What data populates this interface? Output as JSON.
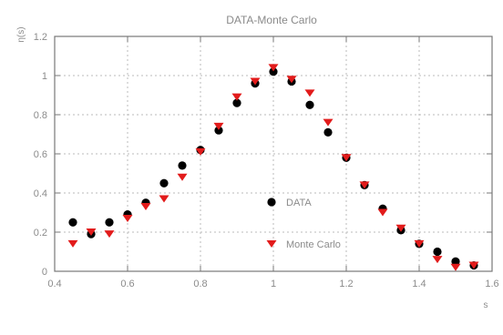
{
  "chart_data": {
    "type": "scatter",
    "title": "DATA-Monte Carlo",
    "xlabel": "s",
    "ylabel": "η(s)",
    "xlim": [
      0.4,
      1.6
    ],
    "ylim": [
      0,
      1.2
    ],
    "x_ticks": [
      "0.4",
      "0.6",
      "0.8",
      "1",
      "1.2",
      "1.4",
      "1.6"
    ],
    "y_ticks": [
      "0",
      "0.2",
      "0.4",
      "0.6",
      "0.8",
      "1",
      "1.2"
    ],
    "grid": true,
    "legend_position": "center-right",
    "series": [
      {
        "name": "DATA",
        "marker": "circle",
        "color": "#000000",
        "points": [
          [
            0.45,
            0.25
          ],
          [
            0.5,
            0.19
          ],
          [
            0.55,
            0.25
          ],
          [
            0.6,
            0.29
          ],
          [
            0.65,
            0.35
          ],
          [
            0.7,
            0.45
          ],
          [
            0.75,
            0.54
          ],
          [
            0.8,
            0.62
          ],
          [
            0.85,
            0.72
          ],
          [
            0.9,
            0.86
          ],
          [
            0.95,
            0.96
          ],
          [
            1.0,
            1.02
          ],
          [
            1.05,
            0.97
          ],
          [
            1.1,
            0.85
          ],
          [
            1.15,
            0.71
          ],
          [
            1.2,
            0.58
          ],
          [
            1.25,
            0.44
          ],
          [
            1.3,
            0.32
          ],
          [
            1.35,
            0.21
          ],
          [
            1.4,
            0.14
          ],
          [
            1.45,
            0.1
          ],
          [
            1.5,
            0.05
          ],
          [
            1.55,
            0.03
          ]
        ]
      },
      {
        "name": "Monte Carlo",
        "marker": "triangle-down",
        "color": "#e21b1b",
        "points": [
          [
            0.45,
            0.14
          ],
          [
            0.5,
            0.2
          ],
          [
            0.55,
            0.19
          ],
          [
            0.6,
            0.27
          ],
          [
            0.65,
            0.33
          ],
          [
            0.7,
            0.37
          ],
          [
            0.75,
            0.48
          ],
          [
            0.8,
            0.61
          ],
          [
            0.85,
            0.74
          ],
          [
            0.9,
            0.89
          ],
          [
            0.95,
            0.97
          ],
          [
            1.0,
            1.04
          ],
          [
            1.05,
            0.98
          ],
          [
            1.1,
            0.91
          ],
          [
            1.15,
            0.76
          ],
          [
            1.2,
            0.58
          ],
          [
            1.25,
            0.44
          ],
          [
            1.3,
            0.3
          ],
          [
            1.35,
            0.22
          ],
          [
            1.4,
            0.14
          ],
          [
            1.45,
            0.06
          ],
          [
            1.5,
            0.02
          ],
          [
            1.55,
            0.03
          ]
        ]
      }
    ]
  },
  "colors": {
    "background": "#ffffff",
    "axis": "#777777",
    "grid": "#bbbbbb",
    "text": "#8b8b8b",
    "title": "#8a8a8a"
  }
}
